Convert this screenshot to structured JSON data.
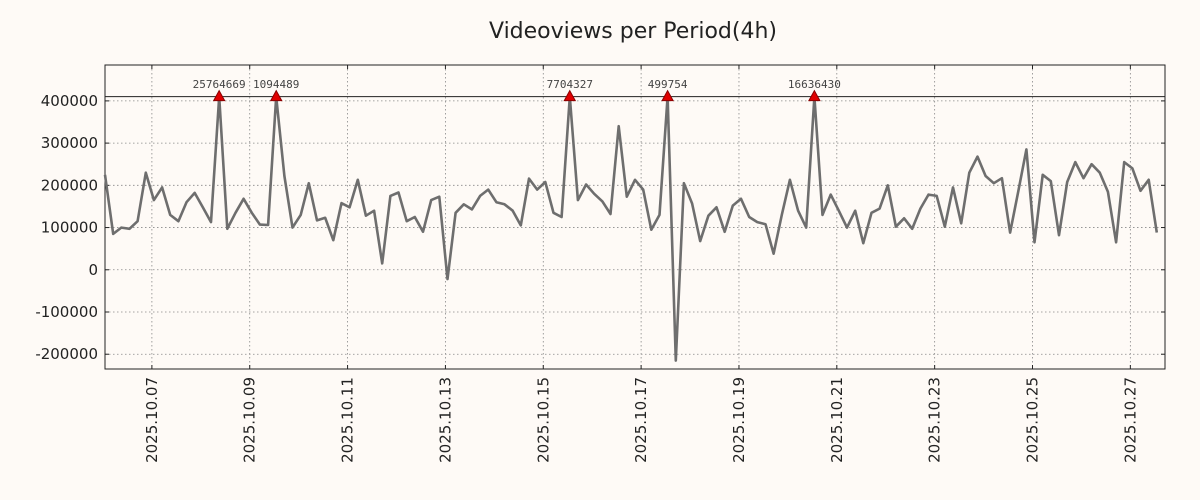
{
  "chart_data": {
    "type": "line",
    "title": "Videoviews per Period(4h)",
    "xlabel": "",
    "ylabel": "",
    "ylim": [
      -235000,
      485000
    ],
    "yticks": [
      400000,
      300000,
      200000,
      100000,
      0,
      -100000,
      -200000
    ],
    "ytick_labels": [
      "400000",
      "300000",
      "200000",
      "100000",
      "0",
      "-100000",
      "-200000"
    ],
    "xticks": [
      "2025.10.07",
      "2025.10.09",
      "2025.10.11",
      "2025.10.13",
      "2025.10.15",
      "2025.10.17",
      "2025.10.19",
      "2025.10.21",
      "2025.10.23",
      "2025.10.25",
      "2025.10.27"
    ],
    "xlim": [
      "2025.10.06 01:00",
      "2025.10.27 17:00"
    ],
    "clip_line_value": 410000,
    "grid": true,
    "series": [
      {
        "name": "Videoviews",
        "color": "#6e6e6e",
        "start": "2025.10.06 01:00",
        "step_hours": 4,
        "values": [
          225000,
          85000,
          100000,
          97000,
          115000,
          230000,
          165000,
          195000,
          130000,
          115000,
          160000,
          182000,
          148000,
          113000,
          410000,
          97000,
          135000,
          168000,
          135000,
          107000,
          106000,
          410000,
          222000,
          100000,
          130000,
          205000,
          117000,
          123000,
          70000,
          158000,
          148000,
          213000,
          128000,
          140000,
          15000,
          175000,
          183000,
          115000,
          125000,
          90000,
          165000,
          173000,
          -22000,
          135000,
          155000,
          143000,
          175000,
          190000,
          160000,
          155000,
          140000,
          105000,
          216000,
          190000,
          208000,
          135000,
          125000,
          410000,
          165000,
          202000,
          180000,
          162000,
          132000,
          340000,
          173000,
          213000,
          190000,
          95000,
          130000,
          410000,
          -215000,
          205000,
          157000,
          68000,
          128000,
          148000,
          90000,
          152000,
          168000,
          125000,
          113000,
          108000,
          38000,
          130000,
          213000,
          140000,
          100000,
          410000,
          130000,
          178000,
          140000,
          100000,
          140000,
          63000,
          135000,
          145000,
          200000,
          102000,
          122000,
          97000,
          145000,
          178000,
          175000,
          102000,
          195000,
          110000,
          230000,
          268000,
          222000,
          205000,
          217000,
          88000,
          185000,
          285000,
          65000,
          225000,
          210000,
          82000,
          208000,
          255000,
          217000,
          250000,
          230000,
          185000,
          65000,
          255000,
          240000,
          187000,
          213000,
          88000
        ]
      }
    ],
    "peaks": [
      {
        "index": 14,
        "label": "25764669"
      },
      {
        "index": 21,
        "label": "1094489"
      },
      {
        "index": 57,
        "label": "7704327"
      },
      {
        "index": 69,
        "label": "499754"
      },
      {
        "index": 87,
        "label": "16636430"
      }
    ],
    "marker_color": "#e00000"
  }
}
